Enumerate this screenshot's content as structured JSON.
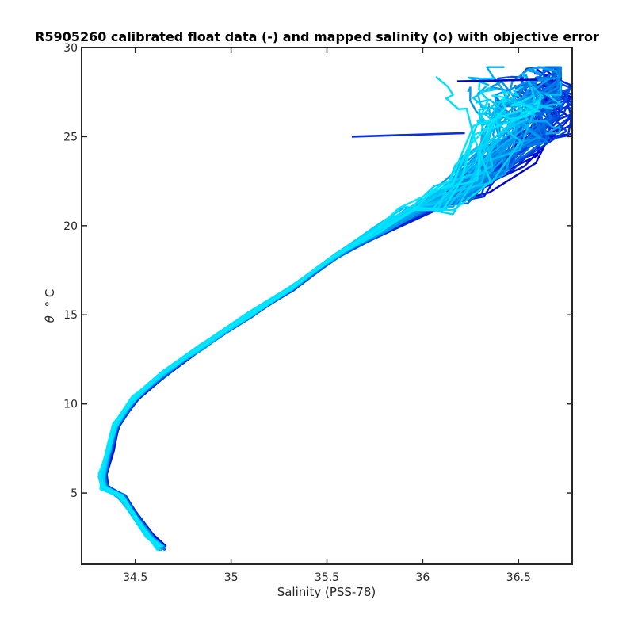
{
  "chart_data": {
    "type": "line",
    "title": "R5905260 calibrated float data (-) and mapped salinity (o) with objective error",
    "xlabel": "Salinity (PSS-78)",
    "ylabel_symbol": "θ",
    "ylabel_unit": "° C",
    "xlim": [
      34.22,
      36.78
    ],
    "ylim": [
      1.0,
      30.0
    ],
    "xticks": [
      34.5,
      35,
      35.5,
      36,
      36.5
    ],
    "yticks": [
      5,
      10,
      15,
      20,
      25,
      30
    ],
    "xtick_labels": [
      "34.5",
      "35",
      "35.5",
      "36",
      "36.5"
    ],
    "ytick_labels": [
      "5",
      "10",
      "15",
      "20",
      "25",
      "30"
    ],
    "grid": false,
    "colors": {
      "early_profiles": "#0000cc",
      "late_profiles": "#00e8ff",
      "axes": "#262626"
    },
    "profile_count_estimate": 80,
    "representative_profile": {
      "description_points": [
        {
          "salinity": 34.64,
          "theta": 1.9
        },
        {
          "salinity": 34.57,
          "theta": 2.6
        },
        {
          "salinity": 34.43,
          "theta": 4.8
        },
        {
          "salinity": 34.34,
          "theta": 5.3
        },
        {
          "salinity": 34.33,
          "theta": 6.0
        },
        {
          "salinity": 34.37,
          "theta": 7.5
        },
        {
          "salinity": 34.4,
          "theta": 8.8
        },
        {
          "salinity": 34.5,
          "theta": 10.3
        },
        {
          "salinity": 34.65,
          "theta": 11.7
        },
        {
          "salinity": 34.85,
          "theta": 13.2
        },
        {
          "salinity": 35.1,
          "theta": 15.0
        },
        {
          "salinity": 35.32,
          "theta": 16.5
        },
        {
          "salinity": 35.55,
          "theta": 18.3
        },
        {
          "salinity": 35.8,
          "theta": 19.8
        },
        {
          "salinity": 36.0,
          "theta": 21.0
        },
        {
          "salinity": 36.2,
          "theta": 22.5
        },
        {
          "salinity": 36.4,
          "theta": 24.2
        },
        {
          "salinity": 36.55,
          "theta": 26.0
        },
        {
          "salinity": 36.6,
          "theta": 27.5
        }
      ]
    },
    "notable_features": [
      {
        "salinity": [
          35.63,
          36.22
        ],
        "theta": [
          25.0,
          25.2
        ]
      },
      {
        "salinity": [
          36.18,
          36.6
        ],
        "theta": [
          28.1,
          28.2
        ]
      }
    ]
  }
}
